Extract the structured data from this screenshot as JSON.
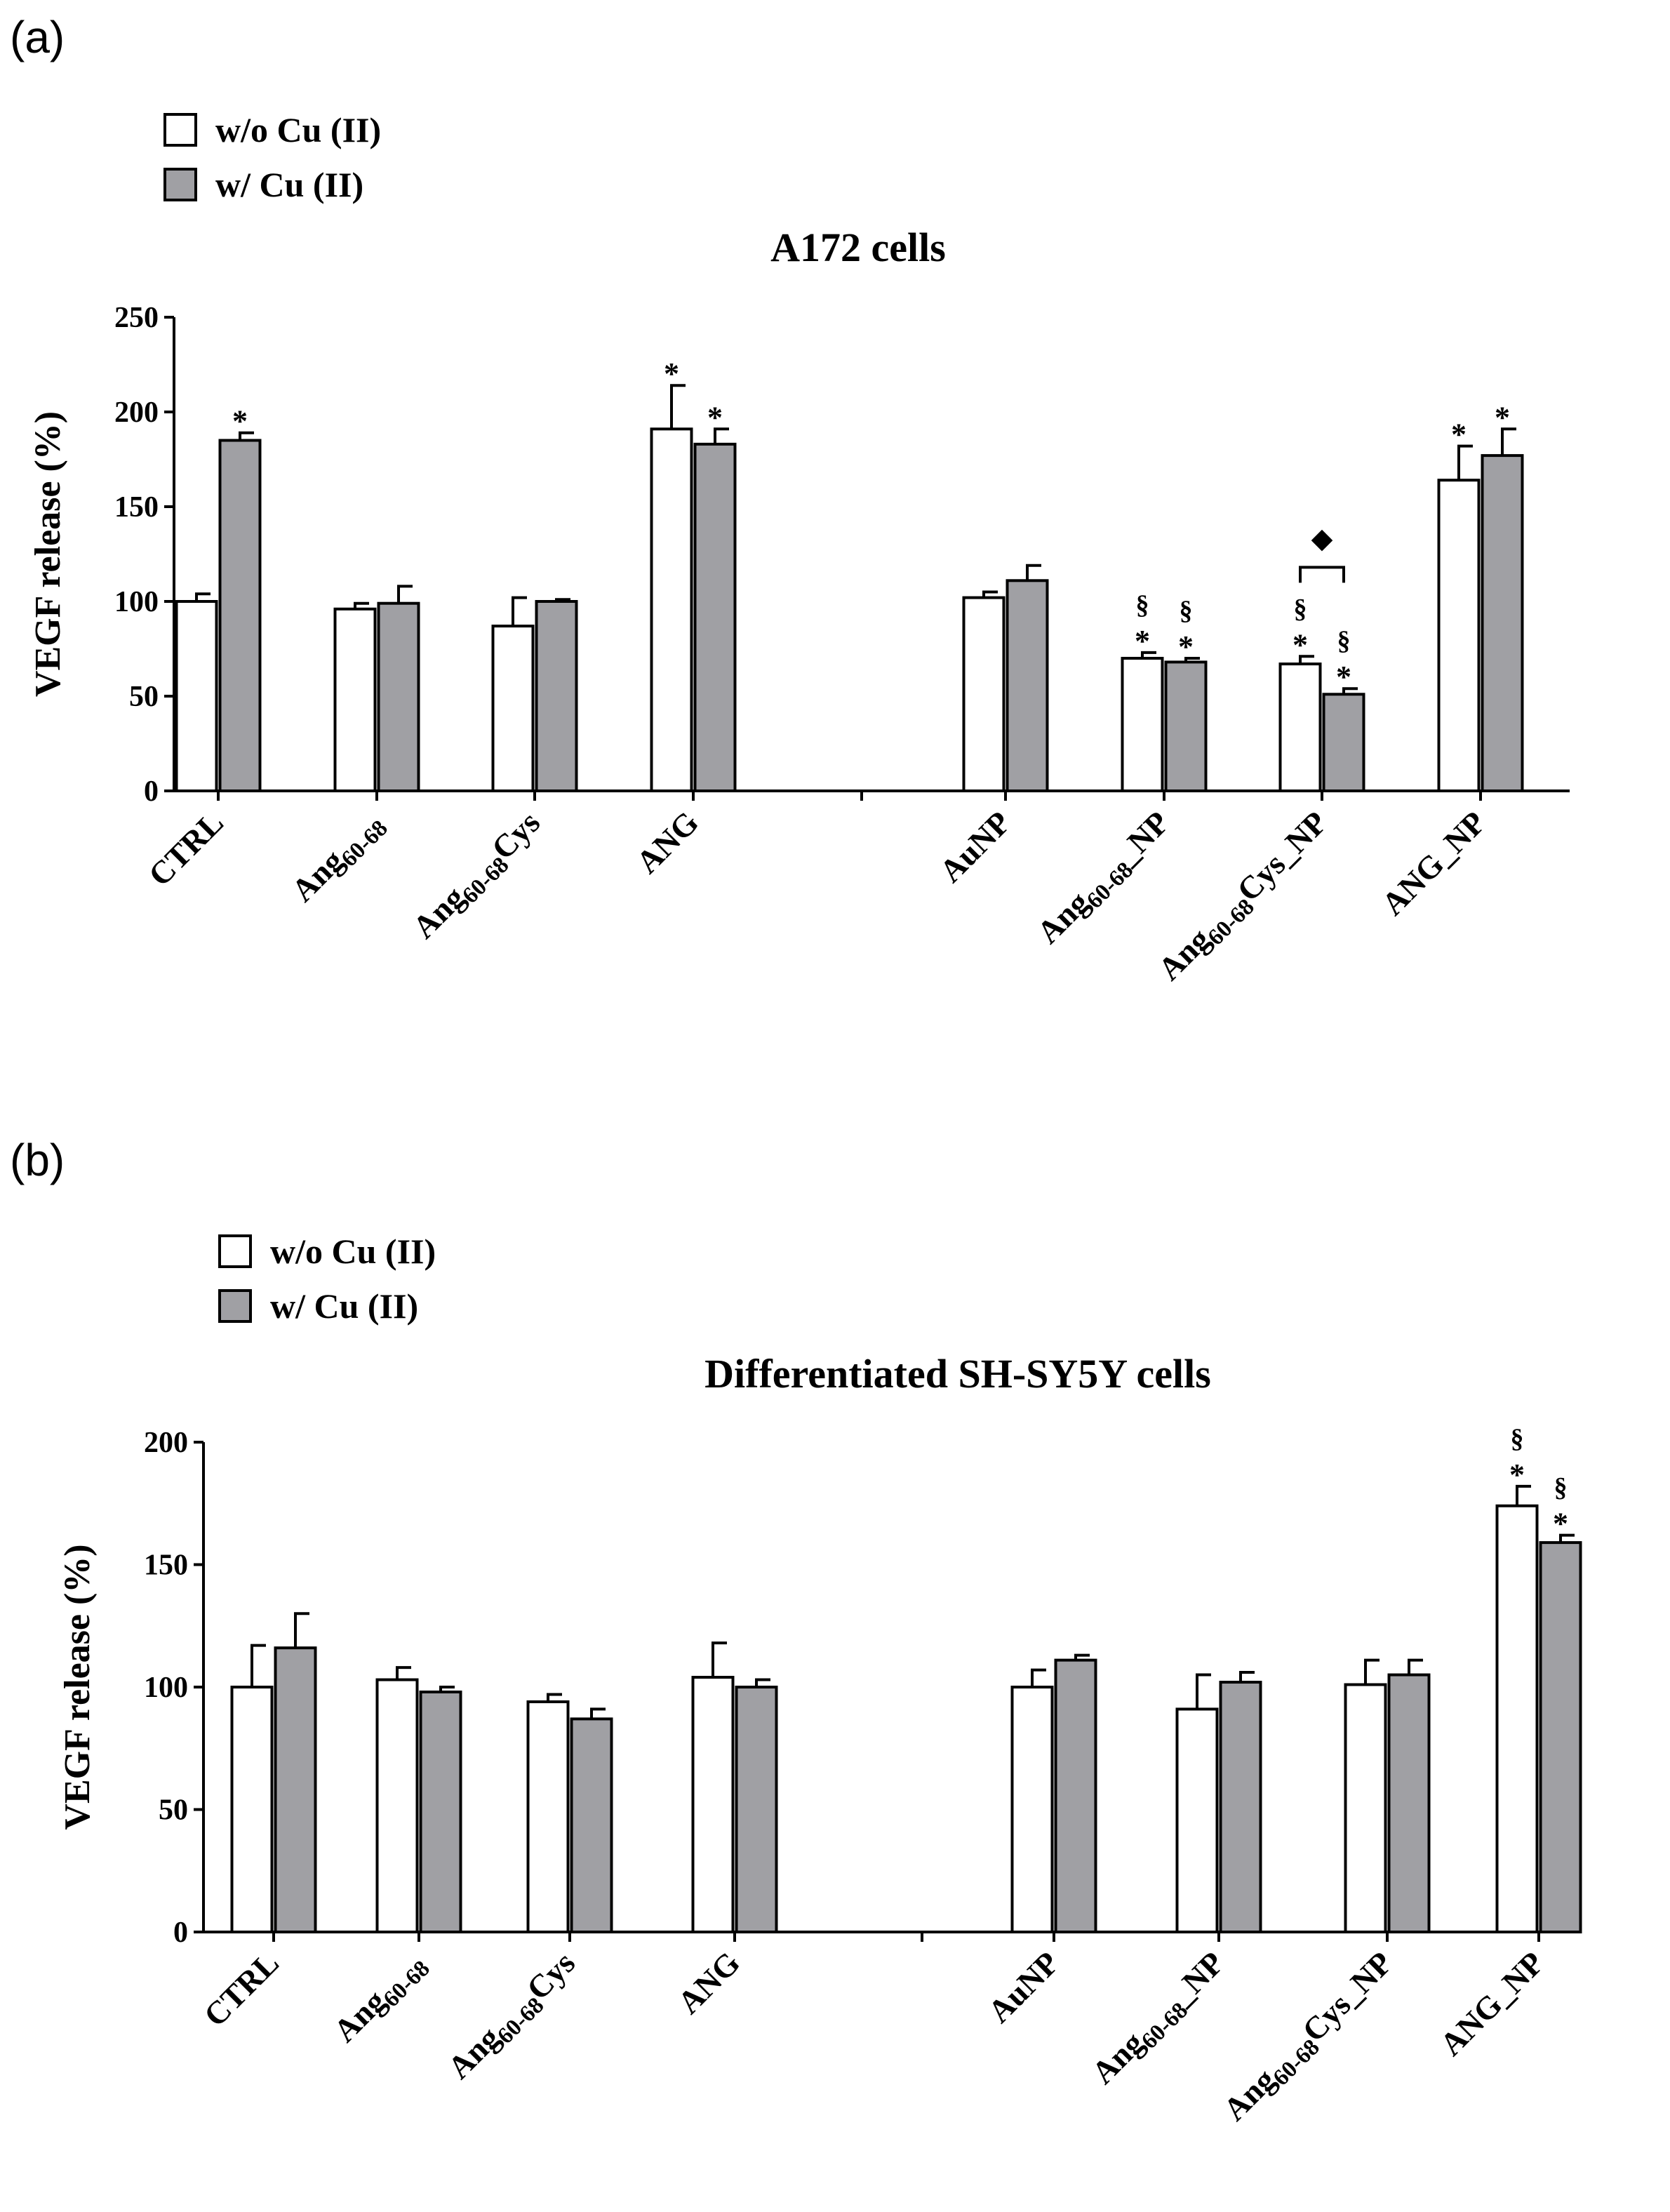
{
  "colors": {
    "bar_without": "#ffffff",
    "bar_with": "#a0a0a4",
    "axis": "#000000"
  },
  "chart_data": [
    {
      "panel_label": "(a)",
      "type": "bar",
      "title": "A172 cells",
      "ylabel": "VEGF release (%)",
      "xlabel": "",
      "ylim": [
        0,
        250
      ],
      "yticks": [
        0,
        50,
        100,
        150,
        200,
        250
      ],
      "legend": {
        "position": "top-left",
        "entries": [
          "w/o Cu (II)",
          "w/ Cu (II)"
        ]
      },
      "groups": [
        {
          "label": "CTRL",
          "pre": "CTRL",
          "sub": "",
          "post": ""
        },
        {
          "label": "Ang60-68",
          "pre": "Ang",
          "sub": "60-68",
          "post": ""
        },
        {
          "label": "Ang60-68Cys",
          "pre": "Ang",
          "sub": "60-68",
          "post": "Cys"
        },
        {
          "label": "ANG",
          "pre": "ANG",
          "sub": "",
          "post": ""
        },
        {
          "label": "AuNP",
          "pre": "AuNP",
          "sub": "",
          "post": ""
        },
        {
          "label": "Ang60-68_NP",
          "pre": "Ang",
          "sub": "60-68",
          "post": "_NP"
        },
        {
          "label": "Ang60-68Cys_NP",
          "pre": "Ang",
          "sub": "60-68",
          "post": "Cys_NP"
        },
        {
          "label": "ANG_NP",
          "pre": "ANG_NP",
          "sub": "",
          "post": ""
        }
      ],
      "series": [
        {
          "name": "w/o Cu (II)",
          "values": [
            100,
            96,
            87,
            191,
            102,
            70,
            67,
            164
          ],
          "errors": [
            4,
            3,
            15,
            23,
            3,
            3,
            4,
            18
          ],
          "annotations": [
            "",
            "",
            "",
            "*",
            "",
            "§\n*",
            "§\n*",
            "*"
          ]
        },
        {
          "name": "w/ Cu (II)",
          "values": [
            185,
            99,
            100,
            183,
            111,
            68,
            51,
            177
          ],
          "errors": [
            4,
            9,
            1,
            8,
            8,
            2,
            3,
            14
          ],
          "annotations": [
            "*",
            "",
            "",
            "*",
            "",
            "§\n*",
            "§\n*",
            "*"
          ]
        }
      ],
      "bracket": {
        "groups": [
          6,
          6
        ],
        "symbol": "◆",
        "y": 118
      }
    },
    {
      "panel_label": "(b)",
      "type": "bar",
      "title": "Differentiated SH-SY5Y cells",
      "ylabel": "VEGF release (%)",
      "xlabel": "",
      "ylim": [
        0,
        200
      ],
      "yticks": [
        0,
        50,
        100,
        150,
        200
      ],
      "legend": {
        "position": "top-left",
        "entries": [
          "w/o Cu (II)",
          "w/ Cu (II)"
        ]
      },
      "groups": [
        {
          "label": "CTRL",
          "pre": "CTRL",
          "sub": "",
          "post": ""
        },
        {
          "label": "Ang60-68",
          "pre": "Ang",
          "sub": "60-68",
          "post": ""
        },
        {
          "label": "Ang60-68Cys",
          "pre": "Ang",
          "sub": "60-68",
          "post": "Cys"
        },
        {
          "label": "ANG",
          "pre": "ANG",
          "sub": "",
          "post": ""
        },
        {
          "label": "AuNP",
          "pre": "AuNP",
          "sub": "",
          "post": ""
        },
        {
          "label": "Ang60-68_NP",
          "pre": "Ang",
          "sub": "60-68",
          "post": "_NP"
        },
        {
          "label": "Ang60-68Cys_NP",
          "pre": "Ang",
          "sub": "60-68",
          "post": "Cys_NP"
        },
        {
          "label": "ANG_NP",
          "pre": "ANG_NP",
          "sub": "",
          "post": ""
        }
      ],
      "series": [
        {
          "name": "w/o Cu (II)",
          "values": [
            100,
            103,
            94,
            104,
            100,
            91,
            101,
            174
          ],
          "errors": [
            17,
            5,
            3,
            14,
            7,
            14,
            10,
            8
          ],
          "annotations": [
            "",
            "",
            "",
            "",
            "",
            "",
            "",
            "§\n*"
          ]
        },
        {
          "name": "w/ Cu (II)",
          "values": [
            116,
            98,
            87,
            100,
            111,
            102,
            105,
            159
          ],
          "errors": [
            14,
            2,
            4,
            3,
            2,
            4,
            6,
            3
          ],
          "annotations": [
            "",
            "",
            "",
            "",
            "",
            "",
            "",
            "§\n*"
          ]
        }
      ],
      "bracket": null
    }
  ]
}
